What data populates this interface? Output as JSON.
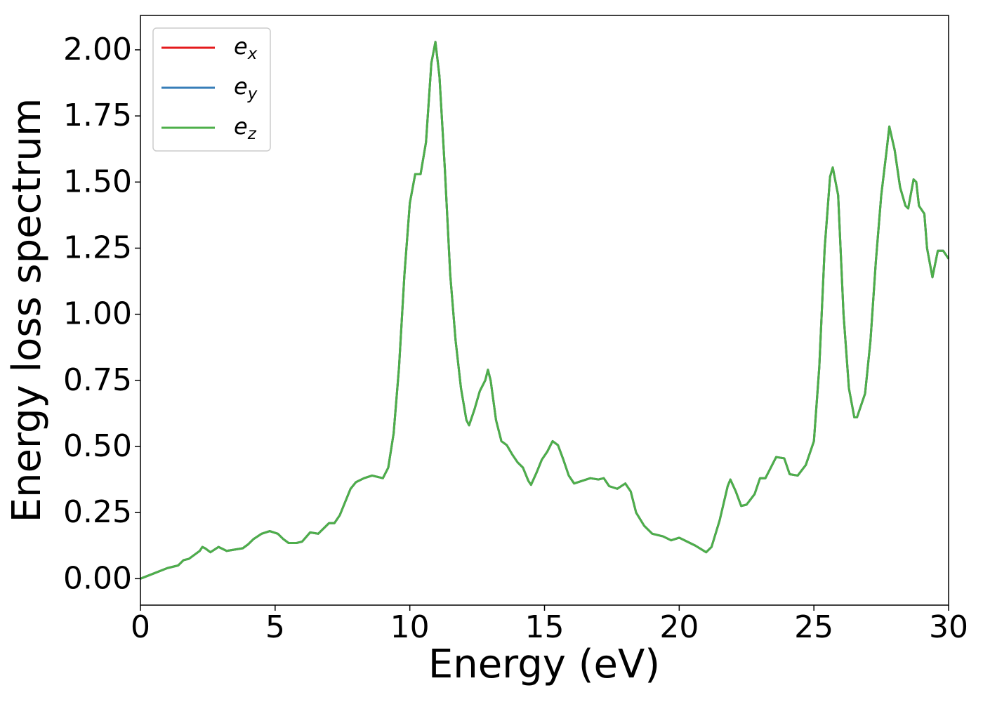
{
  "chart_data": {
    "type": "line",
    "xlabel": "Energy (eV)",
    "ylabel": "Energy loss spectrum",
    "x": [
      0,
      0.5,
      1,
      1.4,
      1.6,
      1.8,
      2.0,
      2.2,
      2.3,
      2.4,
      2.6,
      2.9,
      3.2,
      3.5,
      3.8,
      4.0,
      4.2,
      4.5,
      4.8,
      5.1,
      5.3,
      5.5,
      5.8,
      6.0,
      6.3,
      6.6,
      6.9,
      7.0,
      7.2,
      7.4,
      7.6,
      7.8,
      8.0,
      8.3,
      8.6,
      8.8,
      9.0,
      9.2,
      9.4,
      9.6,
      9.8,
      10.0,
      10.2,
      10.4,
      10.6,
      10.8,
      10.95,
      11.1,
      11.3,
      11.5,
      11.7,
      11.9,
      12.1,
      12.2,
      12.4,
      12.6,
      12.8,
      12.9,
      13.0,
      13.2,
      13.4,
      13.6,
      13.8,
      14.0,
      14.2,
      14.4,
      14.5,
      14.7,
      14.9,
      15.1,
      15.3,
      15.5,
      15.7,
      15.9,
      16.1,
      16.4,
      16.7,
      17.0,
      17.2,
      17.4,
      17.7,
      18.0,
      18.2,
      18.4,
      18.7,
      19.0,
      19.4,
      19.7,
      20.0,
      20.3,
      20.6,
      21.0,
      21.2,
      21.5,
      21.8,
      21.9,
      22.1,
      22.3,
      22.5,
      22.8,
      23.0,
      23.2,
      23.4,
      23.6,
      23.9,
      24.1,
      24.4,
      24.7,
      25.0,
      25.2,
      25.4,
      25.6,
      25.7,
      25.9,
      26.1,
      26.3,
      26.5,
      26.6,
      26.9,
      27.1,
      27.3,
      27.5,
      27.7,
      27.8,
      28.0,
      28.2,
      28.4,
      28.5,
      28.7,
      28.8,
      28.9,
      29.1,
      29.2,
      29.4,
      29.6,
      29.8,
      30.0
    ],
    "series": [
      {
        "name": "ex",
        "color": "#e41a1c",
        "values": [
          0,
          0.02,
          0.04,
          0.05,
          0.07,
          0.075,
          0.09,
          0.105,
          0.12,
          0.115,
          0.1,
          0.12,
          0.105,
          0.11,
          0.115,
          0.13,
          0.15,
          0.17,
          0.18,
          0.17,
          0.15,
          0.135,
          0.135,
          0.14,
          0.175,
          0.17,
          0.2,
          0.21,
          0.21,
          0.24,
          0.29,
          0.34,
          0.365,
          0.38,
          0.39,
          0.385,
          0.38,
          0.42,
          0.55,
          0.8,
          1.15,
          1.42,
          1.53,
          1.53,
          1.65,
          1.95,
          2.03,
          1.9,
          1.55,
          1.15,
          0.9,
          0.72,
          0.6,
          0.58,
          0.64,
          0.71,
          0.75,
          0.79,
          0.75,
          0.6,
          0.52,
          0.505,
          0.47,
          0.44,
          0.42,
          0.37,
          0.355,
          0.4,
          0.45,
          0.48,
          0.52,
          0.505,
          0.45,
          0.39,
          0.36,
          0.37,
          0.38,
          0.375,
          0.38,
          0.35,
          0.34,
          0.36,
          0.33,
          0.25,
          0.2,
          0.17,
          0.16,
          0.145,
          0.155,
          0.14,
          0.125,
          0.1,
          0.12,
          0.22,
          0.35,
          0.375,
          0.33,
          0.275,
          0.28,
          0.32,
          0.38,
          0.38,
          0.42,
          0.46,
          0.455,
          0.395,
          0.39,
          0.43,
          0.52,
          0.8,
          1.25,
          1.52,
          1.555,
          1.45,
          1.0,
          0.72,
          0.61,
          0.61,
          0.7,
          0.9,
          1.2,
          1.45,
          1.62,
          1.71,
          1.62,
          1.48,
          1.41,
          1.4,
          1.51,
          1.5,
          1.41,
          1.38,
          1.25,
          1.14,
          1.24,
          1.24,
          1.21
        ]
      },
      {
        "name": "ey",
        "color": "#377eb8",
        "values": [
          0,
          0.02,
          0.04,
          0.05,
          0.07,
          0.075,
          0.09,
          0.105,
          0.12,
          0.115,
          0.1,
          0.12,
          0.105,
          0.11,
          0.115,
          0.13,
          0.15,
          0.17,
          0.18,
          0.17,
          0.15,
          0.135,
          0.135,
          0.14,
          0.175,
          0.17,
          0.2,
          0.21,
          0.21,
          0.24,
          0.29,
          0.34,
          0.365,
          0.38,
          0.39,
          0.385,
          0.38,
          0.42,
          0.55,
          0.8,
          1.15,
          1.42,
          1.53,
          1.53,
          1.65,
          1.95,
          2.03,
          1.9,
          1.55,
          1.15,
          0.9,
          0.72,
          0.6,
          0.58,
          0.64,
          0.71,
          0.75,
          0.79,
          0.75,
          0.6,
          0.52,
          0.505,
          0.47,
          0.44,
          0.42,
          0.37,
          0.355,
          0.4,
          0.45,
          0.48,
          0.52,
          0.505,
          0.45,
          0.39,
          0.36,
          0.37,
          0.38,
          0.375,
          0.38,
          0.35,
          0.34,
          0.36,
          0.33,
          0.25,
          0.2,
          0.17,
          0.16,
          0.145,
          0.155,
          0.14,
          0.125,
          0.1,
          0.12,
          0.22,
          0.35,
          0.375,
          0.33,
          0.275,
          0.28,
          0.32,
          0.38,
          0.38,
          0.42,
          0.46,
          0.455,
          0.395,
          0.39,
          0.43,
          0.52,
          0.8,
          1.25,
          1.52,
          1.555,
          1.45,
          1.0,
          0.72,
          0.61,
          0.61,
          0.7,
          0.9,
          1.2,
          1.45,
          1.62,
          1.71,
          1.62,
          1.48,
          1.41,
          1.4,
          1.51,
          1.5,
          1.41,
          1.38,
          1.25,
          1.14,
          1.24,
          1.24,
          1.21
        ]
      },
      {
        "name": "ez",
        "color": "#4daf4a",
        "values": [
          0,
          0.02,
          0.04,
          0.05,
          0.07,
          0.075,
          0.09,
          0.105,
          0.12,
          0.115,
          0.1,
          0.12,
          0.105,
          0.11,
          0.115,
          0.13,
          0.15,
          0.17,
          0.18,
          0.17,
          0.15,
          0.135,
          0.135,
          0.14,
          0.175,
          0.17,
          0.2,
          0.21,
          0.21,
          0.24,
          0.29,
          0.34,
          0.365,
          0.38,
          0.39,
          0.385,
          0.38,
          0.42,
          0.55,
          0.8,
          1.15,
          1.42,
          1.53,
          1.53,
          1.65,
          1.95,
          2.03,
          1.9,
          1.55,
          1.15,
          0.9,
          0.72,
          0.6,
          0.58,
          0.64,
          0.71,
          0.75,
          0.79,
          0.75,
          0.6,
          0.52,
          0.505,
          0.47,
          0.44,
          0.42,
          0.37,
          0.355,
          0.4,
          0.45,
          0.48,
          0.52,
          0.505,
          0.45,
          0.39,
          0.36,
          0.37,
          0.38,
          0.375,
          0.38,
          0.35,
          0.34,
          0.36,
          0.33,
          0.25,
          0.2,
          0.17,
          0.16,
          0.145,
          0.155,
          0.14,
          0.125,
          0.1,
          0.12,
          0.22,
          0.35,
          0.375,
          0.33,
          0.275,
          0.28,
          0.32,
          0.38,
          0.38,
          0.42,
          0.46,
          0.455,
          0.395,
          0.39,
          0.43,
          0.52,
          0.8,
          1.25,
          1.52,
          1.555,
          1.45,
          1.0,
          0.72,
          0.61,
          0.61,
          0.7,
          0.9,
          1.2,
          1.45,
          1.62,
          1.71,
          1.62,
          1.48,
          1.41,
          1.4,
          1.51,
          1.5,
          1.41,
          1.38,
          1.25,
          1.14,
          1.24,
          1.24,
          1.21
        ]
      }
    ],
    "xlim": [
      0,
      30
    ],
    "xticks": [
      0,
      5,
      10,
      15,
      20,
      25,
      30
    ],
    "ylim": [
      -0.1,
      2.13
    ],
    "yticks": [
      {
        "value": 0,
        "label": "0.00"
      },
      {
        "value": 0.25,
        "label": "0.25"
      },
      {
        "value": 0.5,
        "label": "0.50"
      },
      {
        "value": 0.75,
        "label": "0.75"
      },
      {
        "value": 1,
        "label": "1.00"
      },
      {
        "value": 1.25,
        "label": "1.25"
      },
      {
        "value": 1.5,
        "label": "1.50"
      },
      {
        "value": 1.75,
        "label": "1.75"
      },
      {
        "value": 2,
        "label": "2.00"
      }
    ],
    "legend": "upper left",
    "grid": false
  }
}
